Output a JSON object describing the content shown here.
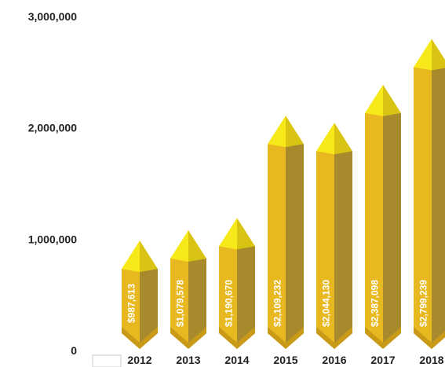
{
  "chart_data": {
    "type": "bar",
    "title": "",
    "xlabel": "",
    "ylabel": "",
    "categories": [
      "2012",
      "2013",
      "2014",
      "2015",
      "2016",
      "2017",
      "2018"
    ],
    "values": [
      987613,
      1079578,
      1190670,
      2109232,
      2044130,
      2387098,
      2799239
    ],
    "data_labels": [
      "$987,613",
      "$1,079,578",
      "$1,190,670",
      "$2,109,232",
      "$2,044,130",
      "$2,387,098",
      "$2,799,239"
    ],
    "yticks": [
      "0",
      "1,000,000",
      "2,000,000",
      "3,000,000"
    ],
    "ylim": [
      0,
      3000000
    ],
    "grid": false,
    "legend": "none",
    "colors": {
      "face": "#E8B820",
      "side": "#A88A2C",
      "top_light": "#F7E81A",
      "top_dark": "#D9C414",
      "label": "#ffffff"
    }
  }
}
